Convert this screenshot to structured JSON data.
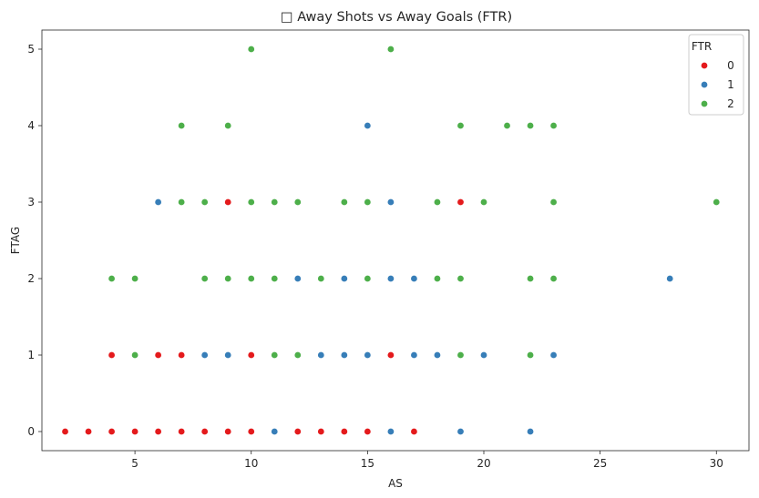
{
  "chart_data": {
    "type": "scatter",
    "title": "□ Away Shots vs Away Goals (FTR)",
    "xlabel": "AS",
    "ylabel": "FTAG",
    "xlim": [
      1.0,
      31.4
    ],
    "ylim": [
      -0.25,
      5.25
    ],
    "xticks": [
      5,
      10,
      15,
      20,
      25,
      30
    ],
    "yticks": [
      0,
      1,
      2,
      3,
      4,
      5
    ],
    "grid": false,
    "legend": {
      "title": "FTR",
      "position": "top-right"
    },
    "series": [
      {
        "name": "0",
        "color": "#e41a1c",
        "points": [
          [
            2,
            0
          ],
          [
            3,
            0
          ],
          [
            4,
            0
          ],
          [
            5,
            0
          ],
          [
            6,
            0
          ],
          [
            7,
            0
          ],
          [
            8,
            0
          ],
          [
            9,
            0
          ],
          [
            10,
            0
          ],
          [
            12,
            0
          ],
          [
            13,
            0
          ],
          [
            14,
            0
          ],
          [
            15,
            0
          ],
          [
            17,
            0
          ],
          [
            4,
            1
          ],
          [
            6,
            1
          ],
          [
            7,
            1
          ],
          [
            10,
            1
          ],
          [
            16,
            1
          ],
          [
            9,
            3
          ],
          [
            19,
            3
          ]
        ]
      },
      {
        "name": "1",
        "color": "#377eb8",
        "points": [
          [
            11,
            0
          ],
          [
            16,
            0
          ],
          [
            19,
            0
          ],
          [
            22,
            0
          ],
          [
            8,
            1
          ],
          [
            9,
            1
          ],
          [
            13,
            1
          ],
          [
            14,
            1
          ],
          [
            15,
            1
          ],
          [
            17,
            1
          ],
          [
            18,
            1
          ],
          [
            20,
            1
          ],
          [
            23,
            1
          ],
          [
            12,
            2
          ],
          [
            14,
            2
          ],
          [
            16,
            2
          ],
          [
            17,
            2
          ],
          [
            28,
            2
          ],
          [
            6,
            3
          ],
          [
            16,
            3
          ],
          [
            15,
            4
          ]
        ]
      },
      {
        "name": "2",
        "color": "#4daf4a",
        "points": [
          [
            5,
            1
          ],
          [
            11,
            1
          ],
          [
            12,
            1
          ],
          [
            19,
            1
          ],
          [
            22,
            1
          ],
          [
            4,
            2
          ],
          [
            5,
            2
          ],
          [
            8,
            2
          ],
          [
            9,
            2
          ],
          [
            10,
            2
          ],
          [
            11,
            2
          ],
          [
            13,
            2
          ],
          [
            15,
            2
          ],
          [
            18,
            2
          ],
          [
            19,
            2
          ],
          [
            22,
            2
          ],
          [
            23,
            2
          ],
          [
            7,
            3
          ],
          [
            8,
            3
          ],
          [
            10,
            3
          ],
          [
            11,
            3
          ],
          [
            12,
            3
          ],
          [
            14,
            3
          ],
          [
            15,
            3
          ],
          [
            18,
            3
          ],
          [
            20,
            3
          ],
          [
            23,
            3
          ],
          [
            30,
            3
          ],
          [
            7,
            4
          ],
          [
            9,
            4
          ],
          [
            19,
            4
          ],
          [
            21,
            4
          ],
          [
            22,
            4
          ],
          [
            23,
            4
          ],
          [
            10,
            5
          ],
          [
            16,
            5
          ]
        ]
      }
    ]
  }
}
